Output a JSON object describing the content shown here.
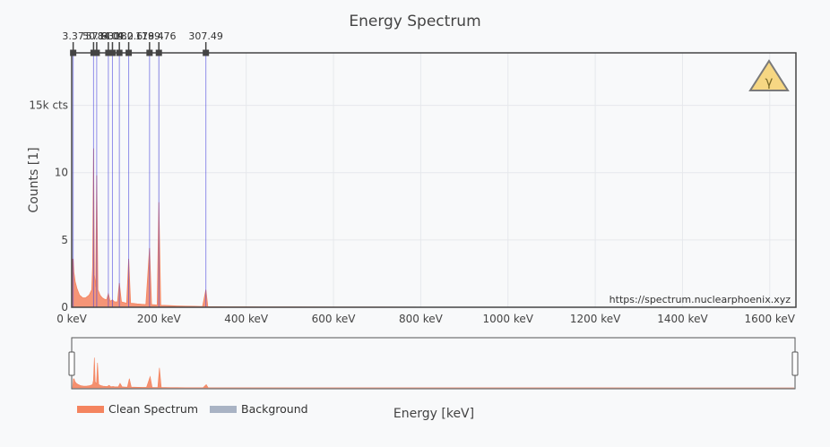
{
  "chart_data": {
    "type": "area",
    "title": "Energy Spectrum",
    "xlabel": "Energy [keV]",
    "ylabel": "Counts [1]",
    "xlim": [
      0,
      1660
    ],
    "ylim": [
      0,
      18.9
    ],
    "xscale": "linear",
    "yscale": "linear",
    "grid": true,
    "legend_position": "bottom-left",
    "x_ticks": [
      {
        "value": 0,
        "label": "0 keV"
      },
      {
        "value": 200,
        "label": "200 keV"
      },
      {
        "value": 400,
        "label": "400 keV"
      },
      {
        "value": 600,
        "label": "600 keV"
      },
      {
        "value": 800,
        "label": "800 keV"
      },
      {
        "value": 1000,
        "label": "1000 keV"
      },
      {
        "value": 1200,
        "label": "1200 keV"
      },
      {
        "value": 1400,
        "label": "1400 keV"
      },
      {
        "value": 1600,
        "label": "1600 keV"
      }
    ],
    "y_ticks": [
      {
        "value": 0,
        "label": "0"
      },
      {
        "value": 5,
        "label": "5"
      },
      {
        "value": 10,
        "label": "10"
      },
      {
        "value": 15,
        "label": "15k cts"
      }
    ],
    "peak_markers": [
      {
        "energy": 3.37,
        "label": "3.37"
      },
      {
        "energy": 50.1,
        "label": "50.1"
      },
      {
        "energy": 57.3,
        "label": "57.3"
      },
      {
        "energy": 84.0,
        "label": "84.0"
      },
      {
        "energy": 93.4,
        "label": "93.4"
      },
      {
        "energy": 109.2,
        "label": "109.2"
      },
      {
        "energy": 130.6,
        "label": "130.6"
      },
      {
        "energy": 178.4,
        "label": "178.4"
      },
      {
        "energy": 199.76,
        "label": "199.76"
      },
      {
        "energy": 307.49,
        "label": "307.49"
      }
    ],
    "series": [
      {
        "name": "Clean Spectrum",
        "color": "#f4845f",
        "x": [
          0,
          2,
          3,
          3.37,
          5,
          8,
          12,
          18,
          25,
          32,
          40,
          46,
          48,
          50.1,
          52,
          55,
          57.3,
          60,
          65,
          70,
          75,
          80,
          84,
          88,
          93.4,
          98,
          105,
          109.2,
          114,
          120,
          126,
          130.6,
          135,
          142,
          150,
          160,
          170,
          178.4,
          183,
          190,
          196,
          199.76,
          204,
          212,
          225,
          240,
          260,
          280,
          300,
          307.49,
          312,
          330,
          360,
          400,
          450,
          500,
          600,
          700,
          800,
          1000,
          1200,
          1400,
          1600,
          1660
        ],
        "y": [
          0,
          3.6,
          2.8,
          3.6,
          2.6,
          1.9,
          1.4,
          0.9,
          0.7,
          0.7,
          0.9,
          1.3,
          3.0,
          11.8,
          2.4,
          1.5,
          9.8,
          1.3,
          0.9,
          0.7,
          0.6,
          0.55,
          1.0,
          0.45,
          0.55,
          0.4,
          0.4,
          1.8,
          0.4,
          0.35,
          0.3,
          3.6,
          0.3,
          0.28,
          0.25,
          0.22,
          0.2,
          4.4,
          0.2,
          0.18,
          0.16,
          7.8,
          0.15,
          0.14,
          0.12,
          0.1,
          0.08,
          0.07,
          0.06,
          1.3,
          0.05,
          0.04,
          0.035,
          0.03,
          0.025,
          0.02,
          0.015,
          0.012,
          0.01,
          0.008,
          0.006,
          0.004,
          0.003,
          0
        ]
      },
      {
        "name": "Background",
        "color": "#a9b3c4",
        "x": [
          0,
          100,
          300,
          600,
          1000,
          1660
        ],
        "y": [
          0,
          0.02,
          0.01,
          0.005,
          0.002,
          0
        ]
      }
    ],
    "annotation": "https://spectrum.nuclearphoenix.xyz",
    "range_slider": true
  },
  "logo": {
    "name": "radiation-warning-icon",
    "glyph": "γ",
    "fill": "#f6d783",
    "stroke": "#7a7a7a"
  },
  "colors": {
    "background": "#f8f9fa",
    "plot_bg": "#f8f9fa",
    "peak_line": "#3a36db",
    "marker": "#444444",
    "grid": "#e6e8ec"
  }
}
